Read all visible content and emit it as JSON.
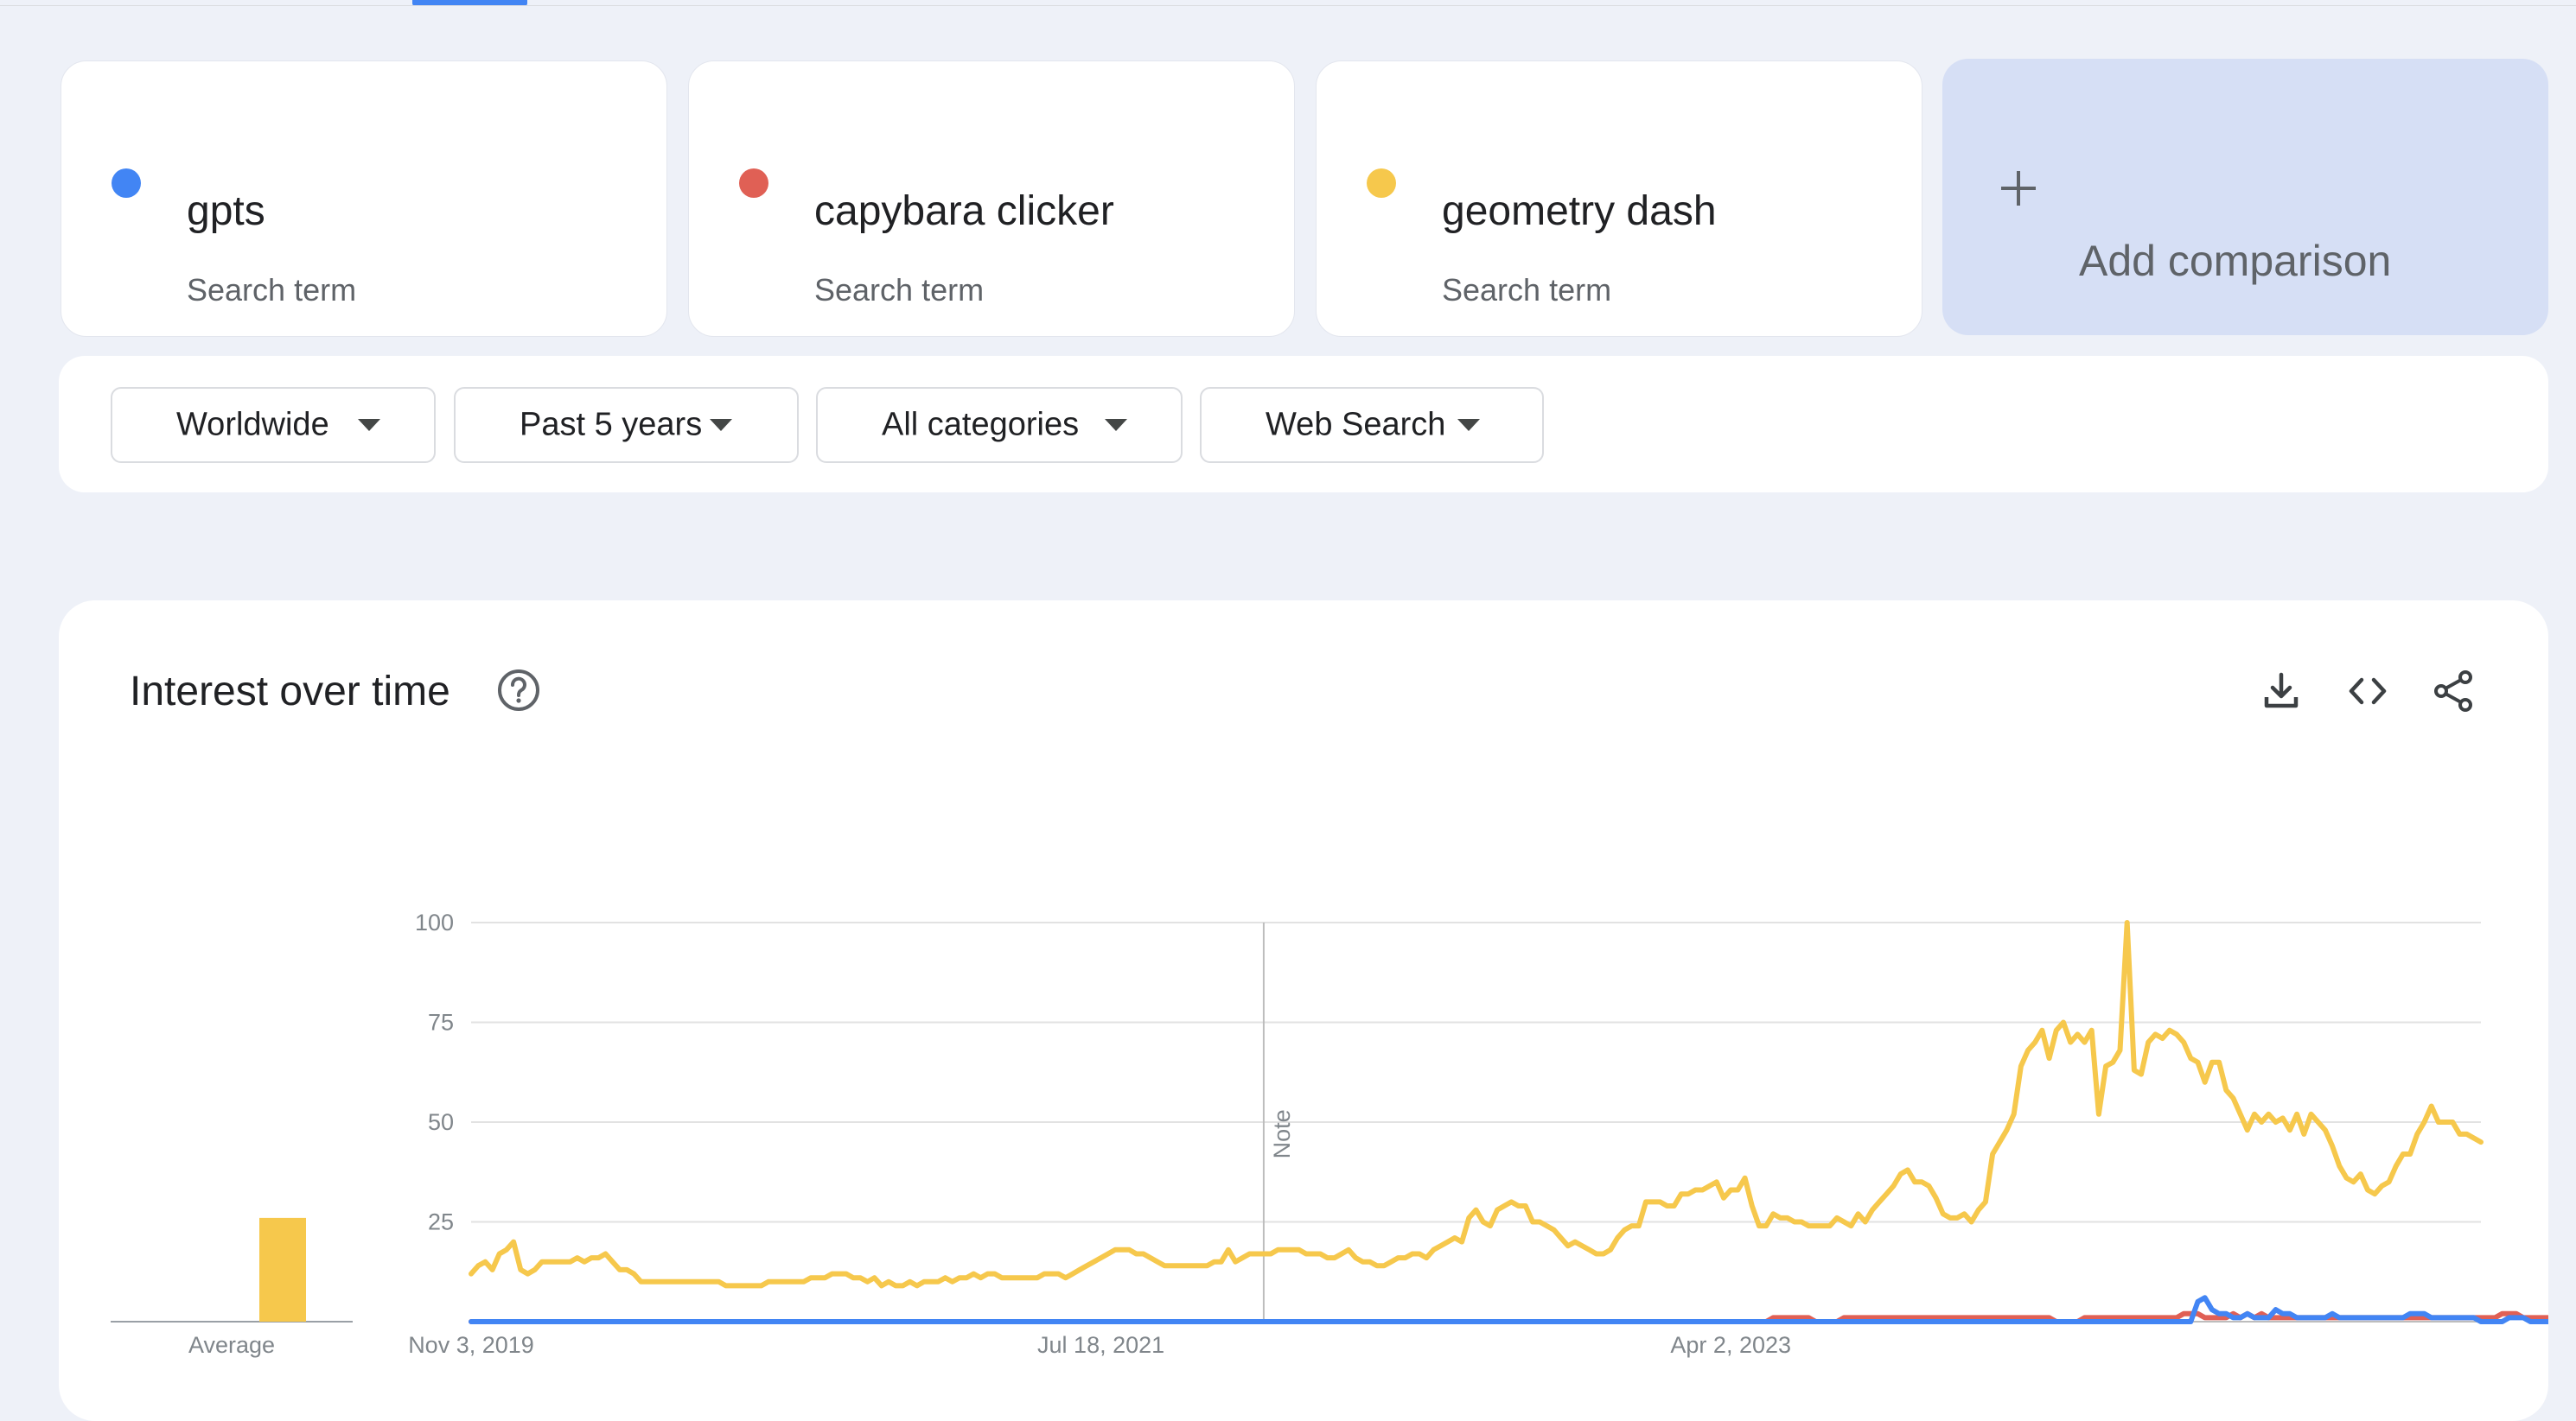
{
  "terms": [
    {
      "name": "gpts",
      "subtitle": "Search term",
      "color": "#4285f4"
    },
    {
      "name": "capybara clicker",
      "subtitle": "Search term",
      "color": "#e06055"
    },
    {
      "name": "geometry dash",
      "subtitle": "Search term",
      "color": "#f6c84c"
    }
  ],
  "add_comparison": {
    "label": "Add comparison"
  },
  "filters": {
    "region": "Worldwide",
    "period": "Past 5 years",
    "category": "All categories",
    "search_type": "Web Search"
  },
  "interest": {
    "title": "Interest over time",
    "icons": [
      "help-icon",
      "download-icon",
      "embed-icon",
      "share-icon"
    ]
  },
  "chart_data": {
    "type": "line",
    "title": "Interest over time",
    "y_ticks": [
      "100",
      "75",
      "50",
      "25"
    ],
    "ylim": [
      0,
      100
    ],
    "x_tick_labels": [
      "Nov 3, 2019",
      "Jul 18, 2021",
      "Apr 2, 2023"
    ],
    "x_tick_index": [
      0,
      89,
      178
    ],
    "note_label": "Note",
    "note_index": 112,
    "average_label": "Average",
    "averages": [
      {
        "name": "gpts",
        "value": 0
      },
      {
        "name": "capybara clicker",
        "value": 0
      },
      {
        "name": "geometry dash",
        "value": 26
      }
    ],
    "series": [
      {
        "name": "geometry dash",
        "color": "#f6c84c",
        "values": [
          12,
          14,
          15,
          13,
          17,
          18,
          20,
          13,
          12,
          13,
          15,
          15,
          15,
          15,
          15,
          16,
          15,
          16,
          16,
          17,
          15,
          13,
          13,
          12,
          10,
          10,
          10,
          10,
          10,
          10,
          10,
          10,
          10,
          10,
          10,
          10,
          9,
          9,
          9,
          9,
          9,
          9,
          10,
          10,
          10,
          10,
          10,
          10,
          11,
          11,
          11,
          12,
          12,
          12,
          11,
          11,
          10,
          11,
          9,
          10,
          9,
          9,
          10,
          9,
          10,
          10,
          10,
          11,
          10,
          11,
          11,
          12,
          11,
          12,
          12,
          11,
          11,
          11,
          11,
          11,
          11,
          12,
          12,
          12,
          11,
          12,
          13,
          14,
          15,
          16,
          17,
          18,
          18,
          18,
          17,
          17,
          16,
          15,
          14,
          14,
          14,
          14,
          14,
          14,
          14,
          15,
          15,
          18,
          15,
          16,
          17,
          17,
          17,
          17,
          18,
          18,
          18,
          18,
          17,
          17,
          17,
          16,
          16,
          17,
          18,
          16,
          15,
          15,
          14,
          14,
          15,
          16,
          16,
          17,
          17,
          16,
          18,
          19,
          20,
          21,
          20,
          26,
          28,
          25,
          24,
          28,
          29,
          30,
          29,
          29,
          25,
          25,
          24,
          23,
          21,
          19,
          20,
          19,
          18,
          17,
          17,
          18,
          21,
          23,
          24,
          24,
          30,
          30,
          30,
          29,
          29,
          32,
          32,
          33,
          33,
          34,
          35,
          31,
          33,
          33,
          36,
          29,
          24,
          24,
          27,
          26,
          26,
          25,
          25,
          24,
          24,
          24,
          24,
          26,
          25,
          24,
          27,
          25,
          28,
          30,
          32,
          34,
          37,
          38,
          35,
          35,
          34,
          31,
          27,
          26,
          26,
          27,
          25,
          28,
          30,
          42,
          45,
          48,
          52,
          64,
          68,
          70,
          73,
          66,
          73,
          75,
          70,
          72,
          70,
          73,
          52,
          64,
          65,
          68,
          100,
          63,
          62,
          70,
          72,
          71,
          73,
          72,
          70,
          66,
          65,
          60,
          65,
          65,
          58,
          56,
          52,
          48,
          52,
          50,
          52,
          50,
          51,
          48,
          52,
          47,
          52,
          50,
          48,
          44,
          39,
          36,
          35,
          37,
          33,
          32,
          34,
          35,
          39,
          42,
          42,
          47,
          50,
          54,
          50,
          50,
          50,
          47,
          47,
          46,
          45
        ]
      },
      {
        "name": "capybara clicker",
        "color": "#e06055",
        "values": [
          0,
          0,
          0,
          0,
          0,
          0,
          0,
          0,
          0,
          0,
          0,
          0,
          0,
          0,
          0,
          0,
          0,
          0,
          0,
          0,
          0,
          0,
          0,
          0,
          0,
          0,
          0,
          0,
          0,
          0,
          0,
          0,
          0,
          0,
          0,
          0,
          0,
          0,
          0,
          0,
          0,
          0,
          0,
          0,
          0,
          0,
          0,
          0,
          0,
          0,
          0,
          0,
          0,
          0,
          0,
          0,
          0,
          0,
          0,
          0,
          0,
          0,
          0,
          0,
          0,
          0,
          0,
          0,
          0,
          0,
          0,
          0,
          0,
          0,
          0,
          0,
          0,
          0,
          0,
          0,
          0,
          0,
          0,
          0,
          0,
          0,
          0,
          0,
          0,
          0,
          0,
          0,
          0,
          0,
          0,
          0,
          0,
          0,
          0,
          0,
          0,
          0,
          0,
          0,
          0,
          0,
          0,
          0,
          0,
          0,
          0,
          0,
          0,
          0,
          0,
          0,
          0,
          0,
          0,
          0,
          0,
          0,
          0,
          0,
          0,
          0,
          0,
          0,
          0,
          0,
          0,
          0,
          0,
          0,
          0,
          0,
          0,
          0,
          0,
          0,
          0,
          0,
          0,
          0,
          0,
          0,
          0,
          0,
          0,
          0,
          0,
          0,
          0,
          0,
          0,
          0,
          0,
          0,
          0,
          0,
          0,
          0,
          0,
          0,
          0,
          0,
          0,
          0,
          0,
          0,
          0,
          0,
          0,
          0,
          0,
          0,
          0,
          0,
          0,
          0,
          0,
          0,
          0,
          0,
          1,
          1,
          1,
          1,
          1,
          1,
          0,
          0,
          0,
          0,
          1,
          1,
          1,
          1,
          1,
          1,
          1,
          1,
          1,
          1,
          1,
          1,
          1,
          1,
          1,
          1,
          1,
          1,
          1,
          1,
          1,
          1,
          1,
          1,
          1,
          1,
          1,
          1,
          1,
          1,
          0,
          0,
          0,
          0,
          1,
          1,
          1,
          1,
          1,
          1,
          1,
          1,
          1,
          1,
          1,
          1,
          1,
          1,
          2,
          2,
          2,
          1,
          1,
          1,
          1,
          2,
          1,
          2,
          1,
          2,
          1,
          1,
          1,
          1,
          1,
          1,
          1,
          1,
          1,
          1,
          1,
          1,
          1,
          1,
          1,
          1,
          1,
          1,
          1,
          1,
          1,
          1,
          1,
          1,
          1,
          1,
          1,
          1,
          1,
          1,
          1,
          1,
          1,
          2,
          2,
          2,
          1,
          1,
          1,
          1,
          1,
          1,
          1,
          1,
          1,
          1,
          1,
          1
        ]
      },
      {
        "name": "gpts",
        "color": "#4285f4",
        "values": [
          0,
          0,
          0,
          0,
          0,
          0,
          0,
          0,
          0,
          0,
          0,
          0,
          0,
          0,
          0,
          0,
          0,
          0,
          0,
          0,
          0,
          0,
          0,
          0,
          0,
          0,
          0,
          0,
          0,
          0,
          0,
          0,
          0,
          0,
          0,
          0,
          0,
          0,
          0,
          0,
          0,
          0,
          0,
          0,
          0,
          0,
          0,
          0,
          0,
          0,
          0,
          0,
          0,
          0,
          0,
          0,
          0,
          0,
          0,
          0,
          0,
          0,
          0,
          0,
          0,
          0,
          0,
          0,
          0,
          0,
          0,
          0,
          0,
          0,
          0,
          0,
          0,
          0,
          0,
          0,
          0,
          0,
          0,
          0,
          0,
          0,
          0,
          0,
          0,
          0,
          0,
          0,
          0,
          0,
          0,
          0,
          0,
          0,
          0,
          0,
          0,
          0,
          0,
          0,
          0,
          0,
          0,
          0,
          0,
          0,
          0,
          0,
          0,
          0,
          0,
          0,
          0,
          0,
          0,
          0,
          0,
          0,
          0,
          0,
          0,
          0,
          0,
          0,
          0,
          0,
          0,
          0,
          0,
          0,
          0,
          0,
          0,
          0,
          0,
          0,
          0,
          0,
          0,
          0,
          0,
          0,
          0,
          0,
          0,
          0,
          0,
          0,
          0,
          0,
          0,
          0,
          0,
          0,
          0,
          0,
          0,
          0,
          0,
          0,
          0,
          0,
          0,
          0,
          0,
          0,
          0,
          0,
          0,
          0,
          0,
          0,
          0,
          0,
          0,
          0,
          0,
          0,
          0,
          0,
          0,
          0,
          0,
          0,
          0,
          0,
          0,
          0,
          0,
          0,
          0,
          0,
          0,
          0,
          0,
          0,
          0,
          0,
          0,
          0,
          0,
          0,
          0,
          0,
          0,
          0,
          0,
          0,
          0,
          0,
          0,
          0,
          0,
          0,
          0,
          0,
          0,
          0,
          0,
          0,
          0,
          0,
          0,
          0,
          0,
          0,
          0,
          0,
          0,
          0,
          0,
          0,
          0,
          0,
          0,
          0,
          0,
          0,
          0,
          0,
          5,
          6,
          3,
          2,
          2,
          1,
          1,
          2,
          1,
          1,
          1,
          3,
          2,
          2,
          1,
          1,
          1,
          1,
          1,
          2,
          1,
          1,
          1,
          1,
          1,
          1,
          1,
          1,
          1,
          1,
          2,
          2,
          2,
          1,
          1,
          1,
          1,
          1,
          1,
          1,
          0,
          0,
          0,
          0,
          1,
          1,
          1,
          0,
          0,
          0,
          0,
          0,
          0,
          0,
          0,
          0,
          0,
          0,
          1,
          1,
          1,
          1,
          0,
          0
        ]
      }
    ]
  }
}
